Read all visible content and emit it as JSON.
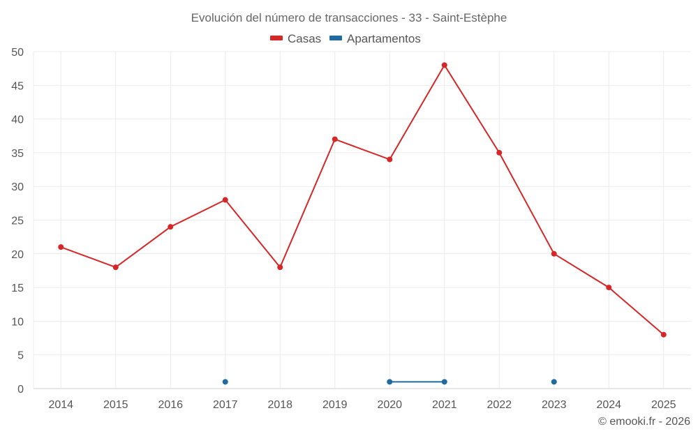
{
  "chart_data": {
    "type": "line",
    "title": "Evolución del número de transacciones - 33 - Saint-Estèphe",
    "categories": [
      "2014",
      "2015",
      "2016",
      "2017",
      "2018",
      "2019",
      "2020",
      "2021",
      "2022",
      "2023",
      "2024",
      "2025"
    ],
    "ylim": [
      0,
      50
    ],
    "yticks": [
      0,
      5,
      10,
      15,
      20,
      25,
      30,
      35,
      40,
      45,
      50
    ],
    "grid": true,
    "legend_position": "top-center",
    "series": [
      {
        "name": "Casas",
        "color": "#d62728",
        "values": [
          21,
          18,
          24,
          28,
          18,
          37,
          34,
          48,
          35,
          20,
          15,
          8
        ]
      },
      {
        "name": "Apartamentos",
        "color": "#1f6aa0",
        "values": [
          null,
          null,
          null,
          1,
          null,
          null,
          1,
          1,
          null,
          1,
          null,
          null
        ]
      }
    ],
    "credit": "© emooki.fr - 2026"
  }
}
